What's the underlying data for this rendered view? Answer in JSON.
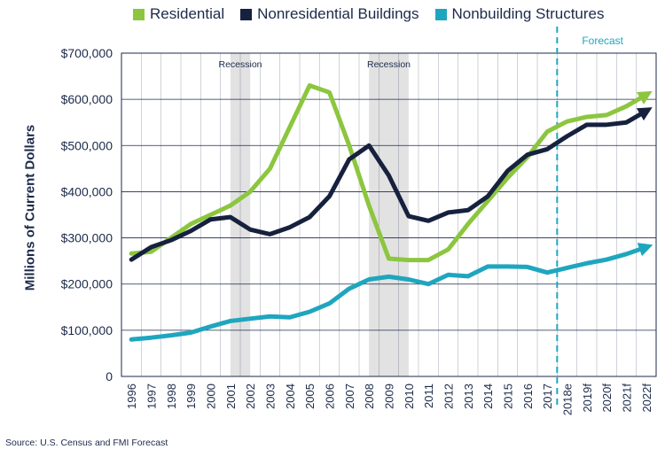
{
  "source_note": "Source: U.S. Census and FMI Forecast",
  "legend": [
    {
      "name": "Residential",
      "color": "#8cc63f"
    },
    {
      "name": "Nonresidential Buildings",
      "color": "#16213e"
    },
    {
      "name": "Nonbuilding Structures",
      "color": "#1fa6bf"
    }
  ],
  "chart_data": {
    "type": "line",
    "ylabel": "Millions of Current Dollars",
    "xlabel": "",
    "ylim": [
      0,
      700000
    ],
    "yticks": [
      0,
      100000,
      200000,
      300000,
      400000,
      500000,
      600000,
      700000
    ],
    "ytick_labels": [
      "0",
      "$100,000",
      "$200,000",
      "$300,000",
      "$400,000",
      "$500,000",
      "$600,000",
      "$700,000"
    ],
    "grid": true,
    "legend_position": "top",
    "categories": [
      "1996",
      "1997",
      "1998",
      "1999",
      "2000",
      "2001",
      "2002",
      "2003",
      "2004",
      "2005",
      "2006",
      "2007",
      "2008",
      "2009",
      "2010",
      "2011",
      "2012",
      "2013",
      "2014",
      "2015",
      "2016",
      "2017",
      "2018e",
      "2019f",
      "2020f",
      "2021f",
      "2022f"
    ],
    "series": [
      {
        "name": "Residential",
        "color": "#8cc63f",
        "values": [
          266000,
          270000,
          300000,
          330000,
          350000,
          370000,
          400000,
          450000,
          540000,
          630000,
          615000,
          500000,
          370000,
          255000,
          252000,
          252000,
          275000,
          330000,
          380000,
          430000,
          475000,
          530000,
          552000,
          562000,
          566000,
          585000,
          610000
        ]
      },
      {
        "name": "Nonresidential Buildings",
        "color": "#16213e",
        "values": [
          253000,
          280000,
          295000,
          315000,
          340000,
          345000,
          318000,
          308000,
          323000,
          345000,
          390000,
          470000,
          500000,
          435000,
          347000,
          337000,
          355000,
          360000,
          390000,
          445000,
          480000,
          492000,
          520000,
          545000,
          545000,
          550000,
          575000
        ]
      },
      {
        "name": "Nonbuilding Structures",
        "color": "#1fa6bf",
        "values": [
          80000,
          84000,
          89000,
          95000,
          108000,
          120000,
          125000,
          130000,
          128000,
          140000,
          158000,
          190000,
          210000,
          216000,
          210000,
          200000,
          220000,
          217000,
          238000,
          238000,
          237000,
          225000,
          235000,
          245000,
          253000,
          265000,
          280000
        ]
      }
    ],
    "recessions": [
      {
        "label": "Recession",
        "start": 2001.0,
        "end": 2002.0
      },
      {
        "label": "Recession",
        "start": 2008.0,
        "end": 2010.0
      }
    ],
    "forecast": {
      "label": "Forecast",
      "x": 2017.5
    }
  }
}
